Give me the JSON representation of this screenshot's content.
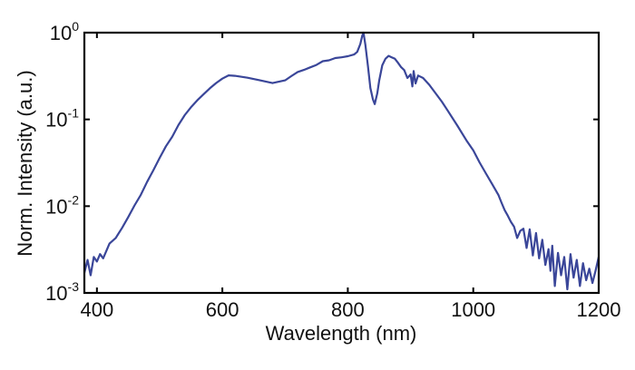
{
  "chart_data": {
    "type": "line",
    "title": "",
    "xlabel": "Wavelength (nm)",
    "ylabel": "Norm. Intensity (a.u.)",
    "xlim": [
      380,
      1200
    ],
    "ylim": [
      0.001,
      1
    ],
    "yscale": "log",
    "grid": false,
    "legend": "none",
    "line_color": "#3a4699",
    "xticks": [
      {
        "value": 400,
        "label": "400"
      },
      {
        "value": 600,
        "label": "600"
      },
      {
        "value": 800,
        "label": "800"
      },
      {
        "value": 1000,
        "label": "1000"
      },
      {
        "value": 1200,
        "label": "1200"
      }
    ],
    "yticks": [
      {
        "value": 0.001,
        "base": "10",
        "exp": "-3"
      },
      {
        "value": 0.01,
        "base": "10",
        "exp": "-2"
      },
      {
        "value": 0.1,
        "base": "10",
        "exp": "-1"
      },
      {
        "value": 1,
        "base": "10",
        "exp": "0"
      }
    ],
    "series": [
      {
        "x": [
          380,
          385,
          390,
          395,
          400,
          405,
          410,
          420,
          430,
          440,
          450,
          460,
          470,
          480,
          490,
          500,
          510,
          520,
          530,
          540,
          550,
          560,
          570,
          580,
          590,
          600,
          610,
          620,
          640,
          660,
          680,
          700,
          710,
          720,
          730,
          740,
          750,
          760,
          770,
          780,
          790,
          800,
          810,
          815,
          820,
          823,
          825,
          828,
          832,
          836,
          840,
          843,
          847,
          850,
          855,
          860,
          865,
          870,
          875,
          880,
          885,
          890,
          895,
          900,
          903,
          905,
          908,
          912,
          920,
          930,
          940,
          950,
          960,
          975,
          990,
          1000,
          1010,
          1020,
          1030,
          1040,
          1045,
          1050,
          1055,
          1060,
          1065,
          1070,
          1075,
          1080,
          1085,
          1090,
          1095,
          1100,
          1105,
          1110,
          1115,
          1120,
          1123,
          1126,
          1130,
          1135,
          1140,
          1145,
          1150,
          1155,
          1160,
          1165,
          1170,
          1175,
          1180,
          1185,
          1190,
          1195,
          1200
        ],
        "y": [
          0.0017,
          0.0024,
          0.0016,
          0.0026,
          0.0023,
          0.0028,
          0.0025,
          0.0037,
          0.0043,
          0.0056,
          0.0075,
          0.0102,
          0.0135,
          0.019,
          0.026,
          0.036,
          0.049,
          0.063,
          0.086,
          0.112,
          0.138,
          0.166,
          0.195,
          0.228,
          0.262,
          0.295,
          0.322,
          0.318,
          0.302,
          0.282,
          0.262,
          0.282,
          0.316,
          0.352,
          0.372,
          0.398,
          0.424,
          0.468,
          0.48,
          0.51,
          0.52,
          0.535,
          0.56,
          0.6,
          0.74,
          0.92,
          1.0,
          0.72,
          0.42,
          0.23,
          0.17,
          0.15,
          0.2,
          0.28,
          0.42,
          0.5,
          0.54,
          0.52,
          0.5,
          0.45,
          0.4,
          0.37,
          0.3,
          0.33,
          0.24,
          0.36,
          0.26,
          0.32,
          0.3,
          0.25,
          0.2,
          0.16,
          0.124,
          0.084,
          0.056,
          0.044,
          0.032,
          0.024,
          0.018,
          0.0135,
          0.011,
          0.009,
          0.0078,
          0.0066,
          0.0058,
          0.0043,
          0.0052,
          0.0055,
          0.0033,
          0.0054,
          0.0027,
          0.0049,
          0.0025,
          0.0041,
          0.0021,
          0.0032,
          0.0018,
          0.0035,
          0.0012,
          0.0029,
          0.0016,
          0.0026,
          0.0011,
          0.0028,
          0.0015,
          0.0024,
          0.0012,
          0.0022,
          0.0014,
          0.0019,
          0.0013,
          0.0018,
          0.0026
        ]
      }
    ]
  }
}
